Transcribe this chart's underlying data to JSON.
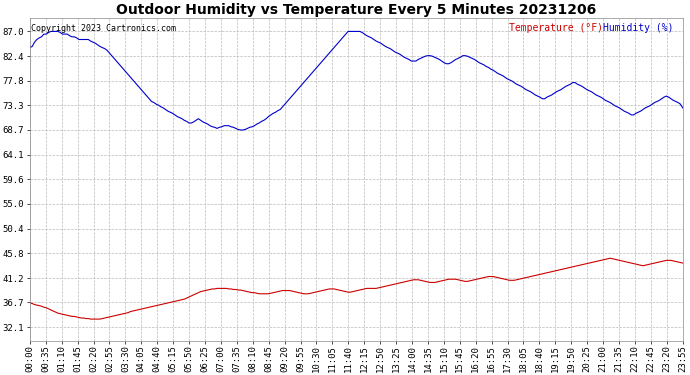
{
  "title": "Outdoor Humidity vs Temperature Every 5 Minutes 20231206",
  "copyright": "Copyright 2023 Cartronics.com",
  "legend_temp": "Temperature (°F)",
  "legend_hum": "Humidity (%)",
  "yticks": [
    32.1,
    36.7,
    41.2,
    45.8,
    50.4,
    55.0,
    59.6,
    64.1,
    68.7,
    73.3,
    77.8,
    82.4,
    87.0
  ],
  "ylim": [
    29.5,
    89.5
  ],
  "bg_color": "#ffffff",
  "grid_color": "#bbbbbb",
  "hum_color": "#0000cc",
  "temp_color": "#cc0000",
  "title_fontsize": 10,
  "tick_fontsize": 6.5,
  "humidity_data": [
    84.0,
    84.2,
    85.0,
    85.5,
    85.8,
    86.0,
    86.5,
    86.5,
    86.8,
    87.0,
    87.0,
    87.0,
    87.0,
    86.8,
    86.5,
    86.5,
    86.5,
    86.2,
    86.0,
    86.0,
    85.8,
    85.5,
    85.5,
    85.5,
    85.5,
    85.5,
    85.2,
    85.0,
    84.8,
    84.5,
    84.2,
    84.0,
    83.8,
    83.5,
    83.0,
    82.5,
    82.0,
    81.5,
    81.0,
    80.5,
    80.0,
    79.5,
    79.0,
    78.5,
    78.0,
    77.5,
    77.0,
    76.5,
    76.0,
    75.5,
    75.0,
    74.5,
    74.0,
    73.8,
    73.5,
    73.3,
    73.0,
    72.8,
    72.5,
    72.2,
    72.0,
    71.8,
    71.5,
    71.2,
    71.0,
    70.8,
    70.5,
    70.3,
    70.0,
    70.0,
    70.2,
    70.5,
    70.8,
    70.5,
    70.2,
    70.0,
    69.8,
    69.5,
    69.3,
    69.2,
    69.0,
    69.2,
    69.3,
    69.5,
    69.5,
    69.5,
    69.3,
    69.2,
    69.0,
    68.8,
    68.7,
    68.7,
    68.8,
    69.0,
    69.2,
    69.3,
    69.5,
    69.8,
    70.0,
    70.3,
    70.5,
    70.8,
    71.2,
    71.5,
    71.8,
    72.0,
    72.3,
    72.5,
    73.0,
    73.5,
    74.0,
    74.5,
    75.0,
    75.5,
    76.0,
    76.5,
    77.0,
    77.5,
    78.0,
    78.5,
    79.0,
    79.5,
    80.0,
    80.5,
    81.0,
    81.5,
    82.0,
    82.5,
    83.0,
    83.5,
    84.0,
    84.5,
    85.0,
    85.5,
    86.0,
    86.5,
    87.0,
    87.0,
    87.0,
    87.0,
    87.0,
    87.0,
    86.8,
    86.5,
    86.2,
    86.0,
    85.8,
    85.5,
    85.2,
    85.0,
    84.8,
    84.5,
    84.2,
    84.0,
    83.8,
    83.5,
    83.2,
    83.0,
    82.8,
    82.5,
    82.2,
    82.0,
    81.8,
    81.5,
    81.5,
    81.5,
    81.8,
    82.0,
    82.2,
    82.4,
    82.5,
    82.5,
    82.4,
    82.2,
    82.0,
    81.8,
    81.5,
    81.2,
    81.0,
    81.0,
    81.2,
    81.5,
    81.8,
    82.0,
    82.2,
    82.5,
    82.5,
    82.4,
    82.2,
    82.0,
    81.8,
    81.5,
    81.2,
    81.0,
    80.8,
    80.5,
    80.3,
    80.0,
    79.8,
    79.5,
    79.2,
    79.0,
    78.8,
    78.5,
    78.2,
    78.0,
    77.8,
    77.5,
    77.2,
    77.0,
    76.8,
    76.5,
    76.2,
    76.0,
    75.8,
    75.5,
    75.2,
    75.0,
    74.8,
    74.5,
    74.5,
    74.8,
    75.0,
    75.2,
    75.5,
    75.8,
    76.0,
    76.2,
    76.5,
    76.8,
    77.0,
    77.2,
    77.5,
    77.5,
    77.2,
    77.0,
    76.8,
    76.5,
    76.2,
    76.0,
    75.8,
    75.5,
    75.2,
    75.0,
    74.8,
    74.5,
    74.2,
    74.0,
    73.8,
    73.5,
    73.2,
    73.0,
    72.8,
    72.5,
    72.2,
    72.0,
    71.8,
    71.5,
    71.5,
    71.8,
    72.0,
    72.2,
    72.5,
    72.8,
    73.0,
    73.2,
    73.5,
    73.8,
    74.0,
    74.2,
    74.5,
    74.8,
    75.0,
    74.8,
    74.5,
    74.2,
    74.0,
    73.8,
    73.5,
    72.8
  ],
  "temp_data": [
    36.6,
    36.5,
    36.3,
    36.2,
    36.1,
    36.0,
    35.8,
    35.7,
    35.5,
    35.3,
    35.1,
    34.9,
    34.7,
    34.6,
    34.5,
    34.4,
    34.3,
    34.2,
    34.1,
    34.1,
    34.0,
    33.9,
    33.8,
    33.8,
    33.7,
    33.7,
    33.6,
    33.6,
    33.6,
    33.6,
    33.6,
    33.7,
    33.8,
    33.9,
    34.0,
    34.1,
    34.2,
    34.3,
    34.4,
    34.5,
    34.6,
    34.7,
    34.8,
    35.0,
    35.1,
    35.2,
    35.3,
    35.4,
    35.5,
    35.6,
    35.7,
    35.8,
    35.9,
    36.0,
    36.1,
    36.2,
    36.3,
    36.4,
    36.5,
    36.6,
    36.7,
    36.8,
    36.9,
    37.0,
    37.1,
    37.2,
    37.3,
    37.5,
    37.7,
    37.9,
    38.1,
    38.3,
    38.5,
    38.7,
    38.8,
    38.9,
    39.0,
    39.1,
    39.2,
    39.2,
    39.3,
    39.3,
    39.3,
    39.3,
    39.3,
    39.2,
    39.2,
    39.1,
    39.1,
    39.0,
    39.0,
    38.9,
    38.8,
    38.7,
    38.6,
    38.5,
    38.5,
    38.4,
    38.3,
    38.3,
    38.3,
    38.3,
    38.3,
    38.4,
    38.5,
    38.6,
    38.7,
    38.8,
    38.9,
    38.9,
    38.9,
    38.9,
    38.8,
    38.7,
    38.6,
    38.5,
    38.4,
    38.3,
    38.3,
    38.3,
    38.4,
    38.5,
    38.6,
    38.7,
    38.8,
    38.9,
    39.0,
    39.1,
    39.2,
    39.2,
    39.2,
    39.1,
    39.0,
    38.9,
    38.8,
    38.7,
    38.6,
    38.6,
    38.7,
    38.8,
    38.9,
    39.0,
    39.1,
    39.2,
    39.3,
    39.3,
    39.3,
    39.3,
    39.3,
    39.4,
    39.5,
    39.6,
    39.7,
    39.8,
    39.9,
    40.0,
    40.1,
    40.2,
    40.3,
    40.4,
    40.5,
    40.6,
    40.7,
    40.8,
    40.9,
    40.9,
    40.9,
    40.8,
    40.7,
    40.6,
    40.5,
    40.4,
    40.4,
    40.4,
    40.5,
    40.6,
    40.7,
    40.8,
    40.9,
    41.0,
    41.0,
    41.0,
    41.0,
    40.9,
    40.8,
    40.7,
    40.6,
    40.6,
    40.7,
    40.8,
    40.9,
    41.0,
    41.1,
    41.2,
    41.3,
    41.4,
    41.5,
    41.5,
    41.5,
    41.4,
    41.3,
    41.2,
    41.1,
    41.0,
    40.9,
    40.8,
    40.8,
    40.8,
    40.9,
    41.0,
    41.1,
    41.2,
    41.3,
    41.4,
    41.5,
    41.6,
    41.7,
    41.8,
    41.9,
    42.0,
    42.1,
    42.2,
    42.3,
    42.4,
    42.5,
    42.6,
    42.7,
    42.8,
    42.9,
    43.0,
    43.1,
    43.2,
    43.3,
    43.4,
    43.5,
    43.6,
    43.7,
    43.8,
    43.9,
    44.0,
    44.1,
    44.2,
    44.3,
    44.4,
    44.5,
    44.6,
    44.7,
    44.8,
    44.9,
    44.8,
    44.7,
    44.6,
    44.5,
    44.4,
    44.3,
    44.2,
    44.1,
    44.0,
    43.9,
    43.8,
    43.7,
    43.6,
    43.5,
    43.6,
    43.7,
    43.8,
    43.9,
    44.0,
    44.1,
    44.2,
    44.3,
    44.4,
    44.5,
    44.5,
    44.5,
    44.4,
    44.3,
    44.2,
    44.1,
    44.0
  ],
  "x_tick_labels": [
    "00:00",
    "00:35",
    "01:10",
    "01:45",
    "02:20",
    "02:55",
    "03:30",
    "04:05",
    "04:40",
    "05:15",
    "05:50",
    "06:25",
    "07:00",
    "07:35",
    "08:10",
    "08:45",
    "09:20",
    "09:55",
    "10:30",
    "11:05",
    "11:40",
    "12:15",
    "12:50",
    "13:25",
    "14:00",
    "14:35",
    "15:10",
    "15:45",
    "16:20",
    "16:55",
    "17:30",
    "18:05",
    "18:40",
    "19:15",
    "19:50",
    "20:25",
    "21:00",
    "21:35",
    "22:10",
    "22:45",
    "23:20",
    "23:55"
  ]
}
